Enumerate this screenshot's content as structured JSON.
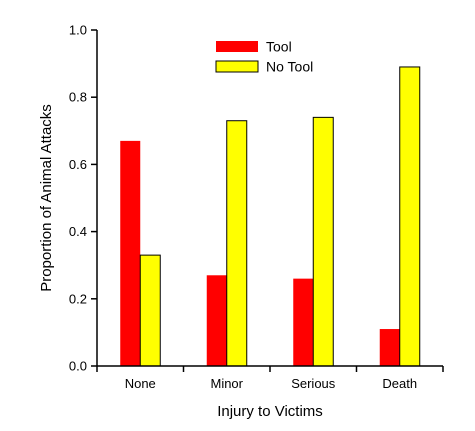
{
  "chart_data": {
    "type": "bar",
    "categories": [
      "None",
      "Minor",
      "Serious",
      "Death"
    ],
    "series": [
      {
        "name": "Tool",
        "values": [
          0.67,
          0.27,
          0.26,
          0.11
        ],
        "color": "#ff0000"
      },
      {
        "name": "No Tool",
        "values": [
          0.33,
          0.73,
          0.74,
          0.89
        ],
        "color": "#ffff00"
      }
    ],
    "xlabel": "Injury to Victims",
    "ylabel": "Proportion of Animal Attacks",
    "ylim": [
      0.0,
      1.0
    ],
    "yticks": [
      "0.0",
      "0.2",
      "0.4",
      "0.6",
      "0.8",
      "1.0"
    ],
    "grid": false,
    "legend_position": "top-center"
  }
}
